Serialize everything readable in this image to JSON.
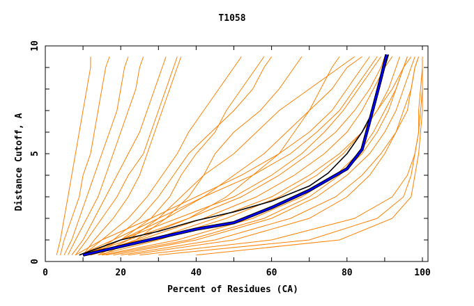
{
  "chart_data": {
    "type": "line",
    "title": "T1058",
    "xlabel": "Percent of Residues (CA)",
    "ylabel": "Distance Cutoff, A",
    "xlim": [
      0,
      100
    ],
    "ylim": [
      0,
      10
    ],
    "x_ticks": [
      0,
      20,
      40,
      60,
      80,
      100
    ],
    "y_ticks": [
      0,
      5,
      10
    ],
    "grid": false,
    "colors": {
      "others": "#ff8000",
      "highlight_black": "#000000",
      "highlight_blue": "#0000ff"
    },
    "y_levels": [
      0.3,
      1,
      2,
      3,
      4,
      5,
      6,
      7,
      8,
      9,
      9.5
    ],
    "other_series_x": [
      [
        3,
        4,
        5,
        6,
        7,
        8,
        9,
        10,
        11,
        12,
        12
      ],
      [
        4,
        5,
        7,
        9,
        10,
        12,
        13,
        14,
        15,
        16,
        17
      ],
      [
        5,
        7,
        9,
        11,
        13,
        15,
        17,
        19,
        20,
        21,
        22
      ],
      [
        6,
        8,
        11,
        14,
        16,
        18,
        20,
        22,
        24,
        25,
        26
      ],
      [
        7,
        10,
        13,
        16,
        19,
        22,
        25,
        27,
        29,
        31,
        32
      ],
      [
        8,
        11,
        15,
        19,
        22,
        26,
        28,
        30,
        32,
        34,
        35
      ],
      [
        10,
        13,
        18,
        22,
        25,
        27,
        29,
        31,
        33,
        35,
        36
      ],
      [
        10,
        15,
        22,
        27,
        31,
        35,
        38,
        42,
        46,
        50,
        52
      ],
      [
        12,
        18,
        25,
        30,
        34,
        38,
        44,
        50,
        55,
        58,
        60
      ],
      [
        12,
        20,
        28,
        33,
        36,
        40,
        45,
        48,
        52,
        56,
        58
      ],
      [
        15,
        24,
        32,
        38,
        42,
        45,
        50,
        57,
        62,
        66,
        68
      ],
      [
        14,
        22,
        30,
        36,
        42,
        50,
        56,
        62,
        70,
        78,
        82
      ],
      [
        8,
        15,
        28,
        40,
        52,
        62,
        70,
        76,
        80,
        84,
        86
      ],
      [
        10,
        20,
        35,
        50,
        60,
        68,
        74,
        79,
        83,
        87,
        89
      ],
      [
        12,
        25,
        42,
        56,
        66,
        74,
        80,
        84,
        87,
        90,
        92
      ],
      [
        14,
        30,
        48,
        62,
        72,
        79,
        84,
        88,
        91,
        93,
        94
      ],
      [
        15,
        35,
        55,
        68,
        77,
        83,
        87,
        90,
        93,
        95,
        96
      ],
      [
        18,
        40,
        60,
        72,
        80,
        86,
        90,
        93,
        95,
        97,
        98
      ],
      [
        20,
        45,
        65,
        77,
        84,
        89,
        93,
        95,
        97,
        98,
        99
      ],
      [
        10,
        22,
        38,
        52,
        62,
        70,
        77,
        82,
        86,
        89,
        90
      ],
      [
        12,
        28,
        45,
        60,
        70,
        78,
        84,
        88,
        92,
        95,
        97
      ],
      [
        16,
        38,
        58,
        70,
        78,
        84,
        88,
        91,
        93,
        95,
        96
      ],
      [
        9,
        18,
        30,
        42,
        55,
        65,
        72,
        78,
        82,
        86,
        88
      ],
      [
        22,
        50,
        70,
        80,
        86,
        90,
        93,
        96,
        97,
        98,
        99
      ],
      [
        25,
        60,
        82,
        92,
        96,
        98,
        99,
        99,
        99.5,
        100,
        100
      ],
      [
        30,
        70,
        88,
        95,
        97,
        98,
        99,
        99.5,
        100,
        100,
        100
      ],
      [
        40,
        78,
        92,
        97,
        98,
        99,
        99.5,
        100,
        100,
        100,
        100
      ],
      [
        12,
        24,
        38,
        48,
        55,
        62,
        66,
        70,
        73,
        76,
        78
      ],
      [
        10,
        20,
        32,
        42,
        50,
        58,
        64,
        70,
        76,
        80,
        84
      ]
    ],
    "highlight_series": [
      {
        "name": "black",
        "points": [
          [
            9,
            0.3
          ],
          [
            20,
            1
          ],
          [
            30,
            1.4
          ],
          [
            40,
            1.9
          ],
          [
            50,
            2.3
          ],
          [
            60,
            2.8
          ],
          [
            70,
            3.5
          ],
          [
            75,
            4.1
          ],
          [
            80,
            5
          ],
          [
            84,
            6
          ],
          [
            87,
            7
          ],
          [
            88.5,
            8
          ],
          [
            90,
            9
          ],
          [
            91,
            9.6
          ]
        ]
      },
      {
        "name": "blue",
        "points": [
          [
            10,
            0.3
          ],
          [
            20,
            0.7
          ],
          [
            30,
            1.1
          ],
          [
            40,
            1.5
          ],
          [
            50,
            1.8
          ],
          [
            60,
            2.5
          ],
          [
            70,
            3.3
          ],
          [
            80,
            4.3
          ],
          [
            84,
            5.2
          ],
          [
            86,
            6.5
          ],
          [
            87.5,
            7.5
          ],
          [
            89,
            8.5
          ],
          [
            90.5,
            9.6
          ]
        ]
      }
    ]
  }
}
